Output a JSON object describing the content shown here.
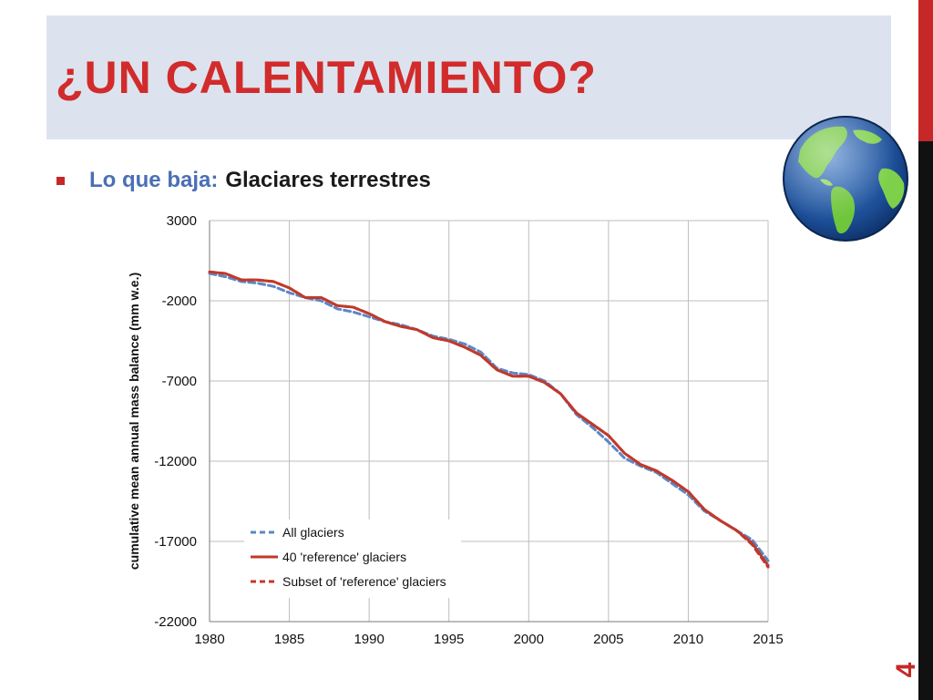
{
  "slide": {
    "title": "¿UN CALENTAMIENTO?",
    "bullet_lead": "Lo que baja:",
    "bullet_text": "Glaciares terrestres",
    "page_number": "4"
  },
  "colors": {
    "title": "#d22b2b",
    "title_band": "#dde3ee",
    "accent_red": "#c62828",
    "bullet_lead": "#4a6fb5",
    "series_all": "#5b87c5",
    "series_reference": "#c0392b",
    "series_subset": "#c0392b"
  },
  "icons": {
    "globe": "globe-icon"
  },
  "chart_data": {
    "type": "line",
    "title": "",
    "xlabel": "",
    "ylabel": "cumulative mean annual mass balance (mm w.e.)",
    "xlim": [
      1980,
      2015
    ],
    "ylim": [
      -22000,
      3000
    ],
    "x_ticks": [
      "1980",
      "1985",
      "1990",
      "1995",
      "2000",
      "2005",
      "2010",
      "2015"
    ],
    "y_ticks": [
      "3000",
      "-2000",
      "-7000",
      "-12000",
      "-17000",
      "-22000"
    ],
    "grid": true,
    "legend_position": "bottom-left",
    "series": [
      {
        "name": "All glaciers",
        "style": "dashed",
        "color": "#5b87c5",
        "x": [
          1980,
          1981,
          1982,
          1983,
          1984,
          1985,
          1986,
          1987,
          1988,
          1989,
          1990,
          1991,
          1992,
          1993,
          1994,
          1995,
          1996,
          1997,
          1998,
          1999,
          2000,
          2001,
          2002,
          2003,
          2004,
          2005,
          2006,
          2007,
          2008,
          2009,
          2010,
          2011,
          2012,
          2013,
          2014,
          2015
        ],
        "y": [
          -300,
          -500,
          -800,
          -900,
          -1100,
          -1500,
          -1800,
          -2000,
          -2500,
          -2700,
          -3000,
          -3300,
          -3500,
          -3800,
          -4200,
          -4400,
          -4700,
          -5200,
          -6200,
          -6500,
          -6600,
          -7000,
          -7800,
          -9100,
          -9900,
          -10800,
          -11800,
          -12300,
          -12700,
          -13400,
          -14100,
          -15100,
          -15700,
          -16300,
          -16900,
          -18200
        ]
      },
      {
        "name": "40 'reference' glaciers",
        "style": "solid",
        "color": "#c0392b",
        "x": [
          1980,
          1981,
          1982,
          1983,
          1984,
          1985,
          1986,
          1987,
          1988,
          1989,
          1990,
          1991,
          1992,
          1993,
          1994,
          1995,
          1996,
          1997,
          1998,
          1999,
          2000,
          2001,
          2002,
          2003,
          2004,
          2005,
          2006,
          2007,
          2008,
          2009,
          2010,
          2011,
          2012,
          2013,
          2014,
          2015
        ],
        "y": [
          -200,
          -300,
          -700,
          -700,
          -800,
          -1200,
          -1800,
          -1800,
          -2300,
          -2400,
          -2800,
          -3300,
          -3600,
          -3800,
          -4300,
          -4500,
          -4900,
          -5400,
          -6300,
          -6700,
          -6700,
          -7100,
          -7800,
          -9000,
          -9700,
          -10400,
          -11500,
          -12200,
          -12600,
          -13200,
          -13900,
          -15000,
          -15700,
          -16300,
          -17100,
          -18500
        ]
      },
      {
        "name": "Subset of 'reference' glaciers",
        "style": "dashed",
        "color": "#c0392b",
        "x": [
          1980,
          1981,
          1982,
          1983,
          1984,
          1985,
          1986,
          1987,
          1988,
          1989,
          1990,
          1991,
          1992,
          1993,
          1994,
          1995,
          1996,
          1997,
          1998,
          1999,
          2000,
          2001,
          2002,
          2003,
          2004,
          2005,
          2006,
          2007,
          2008,
          2009,
          2010,
          2011,
          2012,
          2013,
          2014,
          2015
        ],
        "y": [
          -200,
          -300,
          -700,
          -700,
          -800,
          -1200,
          -1800,
          -1800,
          -2300,
          -2400,
          -2800,
          -3300,
          -3600,
          -3800,
          -4300,
          -4500,
          -4900,
          -5400,
          -6300,
          -6700,
          -6700,
          -7100,
          -7800,
          -9000,
          -9700,
          -10400,
          -11500,
          -12200,
          -12600,
          -13200,
          -13900,
          -15000,
          -15700,
          -16300,
          -17200,
          -18600
        ]
      }
    ]
  }
}
